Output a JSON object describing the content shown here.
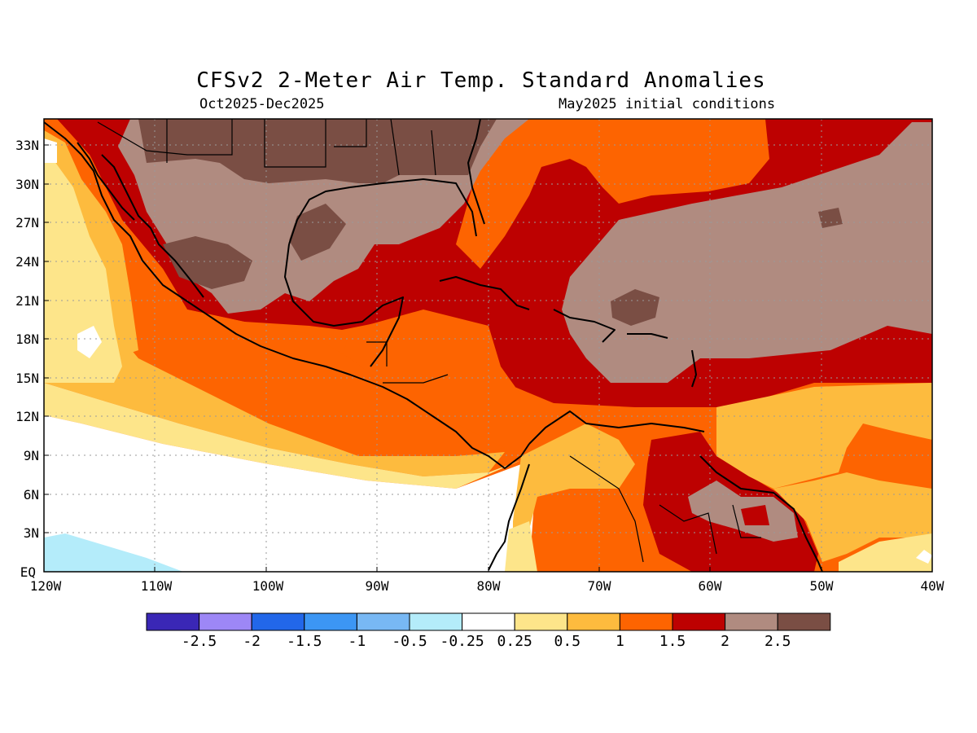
{
  "title": "CFSv2 2-Meter Air Temp. Standard Anomalies",
  "period": "Oct2025-Dec2025",
  "init": "May2025 initial conditions",
  "lat_labels": [
    "33N",
    "30N",
    "27N",
    "24N",
    "21N",
    "18N",
    "15N",
    "12N",
    "9N",
    "6N",
    "3N",
    "EQ"
  ],
  "lon_labels": [
    "120W",
    "110W",
    "100W",
    "90W",
    "80W",
    "70W",
    "60W",
    "50W",
    "40W"
  ],
  "colorbar": {
    "labels": [
      "-2.5",
      "-2",
      "-1.5",
      "-1",
      "-0.5",
      "-0.25",
      "0.25",
      "0.5",
      "1",
      "1.5",
      "2",
      "2.5"
    ],
    "colors": [
      "#3a27b6",
      "#9d87f6",
      "#2267e9",
      "#3c96f4",
      "#78b8f4",
      "#b4ecfa",
      "#ffffff",
      "#fde58a",
      "#fdbb3e",
      "#fd6401",
      "#bd0101",
      "#b08b80",
      "#7a4e44"
    ]
  },
  "map": {
    "lat_range": [
      0,
      35
    ],
    "lon_range": [
      -120,
      -40
    ],
    "icons": [
      "coastline-icon",
      "border-icon"
    ]
  }
}
